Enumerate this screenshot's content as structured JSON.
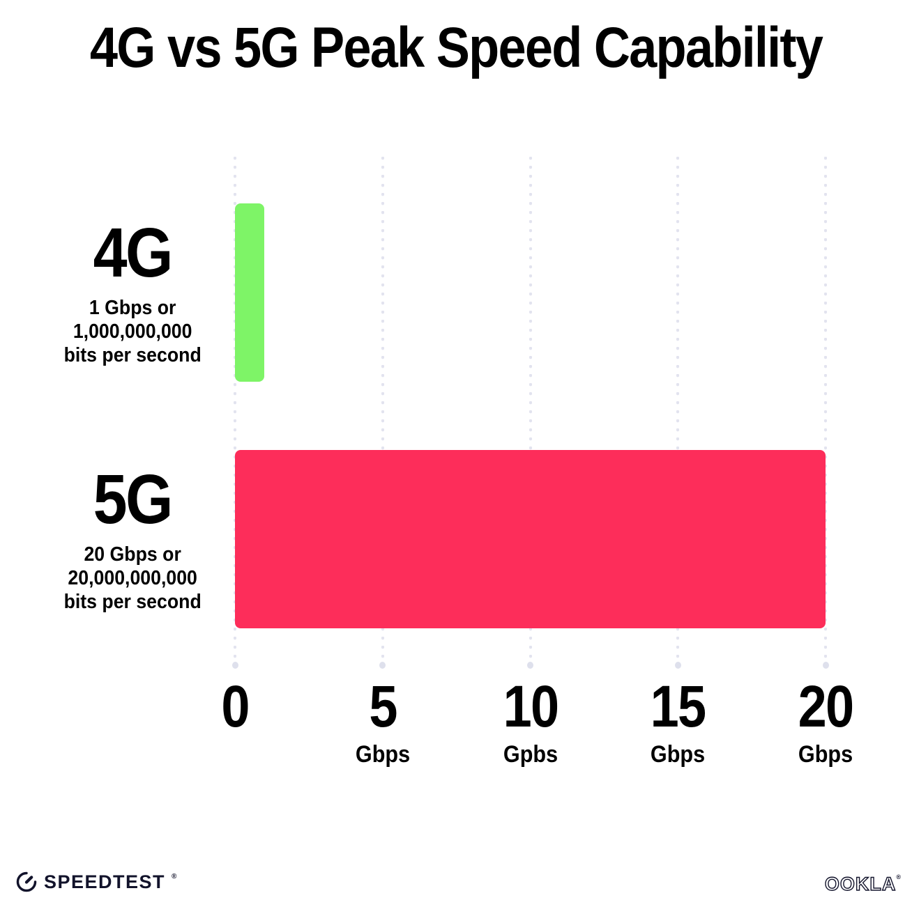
{
  "chart_data": {
    "type": "bar",
    "orientation": "horizontal",
    "title": "4G vs 5G Peak Speed Capability",
    "xlim": [
      0,
      20
    ],
    "grid": "dotted vertical gridlines with end dots",
    "gridline_color": "#E2E3EF",
    "categories": [
      "4G",
      "5G"
    ],
    "values": [
      1,
      20
    ],
    "bars": [
      {
        "label": "4G",
        "sublabel_lines": [
          "1 Gbps or",
          "1,000,000,000",
          "bits per second"
        ],
        "value_gbps": 1,
        "color": "#7EF467"
      },
      {
        "label": "5G",
        "sublabel_lines": [
          "20 Gbps or",
          "20,000,000,000",
          "bits per second"
        ],
        "value_gbps": 20,
        "color": "#FD2D5A"
      }
    ],
    "x_ticks": [
      {
        "value": 0,
        "number": "0",
        "unit": ""
      },
      {
        "value": 5,
        "number": "5",
        "unit": "Gbps"
      },
      {
        "value": 10,
        "number": "10",
        "unit": "Gpbs"
      },
      {
        "value": 15,
        "number": "15",
        "unit": "Gbps"
      },
      {
        "value": 20,
        "number": "20",
        "unit": "Gbps"
      }
    ]
  },
  "footer": {
    "speedtest_label": "SPEEDTEST",
    "speedtest_trademark": "®",
    "ookla_label": "OOKLA",
    "ookla_trademark": "®"
  }
}
